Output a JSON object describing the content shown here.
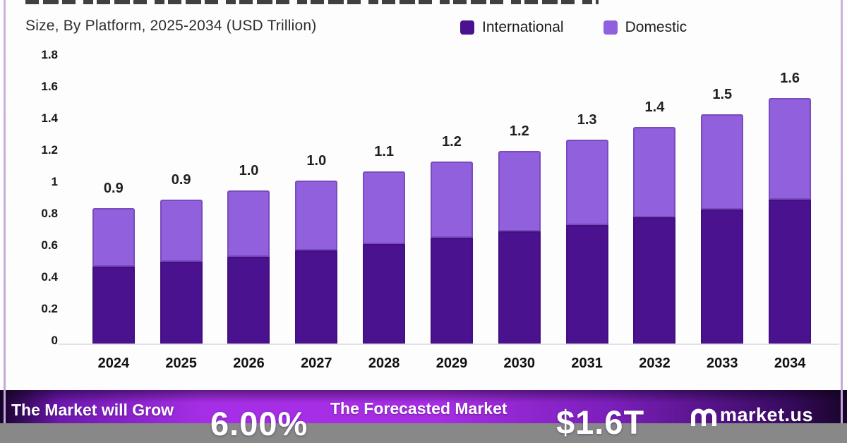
{
  "header": {
    "subtitle": "Size, By Platform, 2025-2034 (USD Trillion)",
    "legend": [
      {
        "label": "International",
        "color": "#4a128f"
      },
      {
        "label": "Domestic",
        "color": "#9060dd"
      }
    ]
  },
  "chart_data": {
    "type": "bar",
    "stacked": true,
    "title": "Size, By Platform, 2025-2034 (USD Trillion)",
    "categories": [
      "2024",
      "2025",
      "2026",
      "2027",
      "2028",
      "2029",
      "2030",
      "2031",
      "2032",
      "2033",
      "2034"
    ],
    "series": [
      {
        "name": "International",
        "color": "#4a128f",
        "values": [
          0.49,
          0.52,
          0.55,
          0.59,
          0.63,
          0.67,
          0.71,
          0.75,
          0.8,
          0.85,
          0.91
        ]
      },
      {
        "name": "Domestic",
        "color": "#9060dd",
        "values": [
          0.37,
          0.39,
          0.42,
          0.44,
          0.46,
          0.48,
          0.51,
          0.54,
          0.57,
          0.6,
          0.64
        ]
      }
    ],
    "total_labels": [
      "0.9",
      "0.9",
      "1.0",
      "1.0",
      "1.1",
      "1.2",
      "1.2",
      "1.3",
      "1.4",
      "1.5",
      "1.6"
    ],
    "xlabel": "",
    "ylabel": "",
    "ylim": [
      0,
      1.8
    ],
    "yticks": [
      "0",
      "0.2",
      "0.4",
      "0.6",
      "0.8",
      "1",
      "1.2",
      "1.4",
      "1.6",
      "1.8"
    ],
    "grid": false,
    "legend_position": "top-right"
  },
  "banner": {
    "stat1_label": "The Market will Grow",
    "stat1_value": "6.00%",
    "stat2_label": "The Forecasted Market",
    "stat2_value": "$1.6T",
    "brand": "market.us"
  }
}
